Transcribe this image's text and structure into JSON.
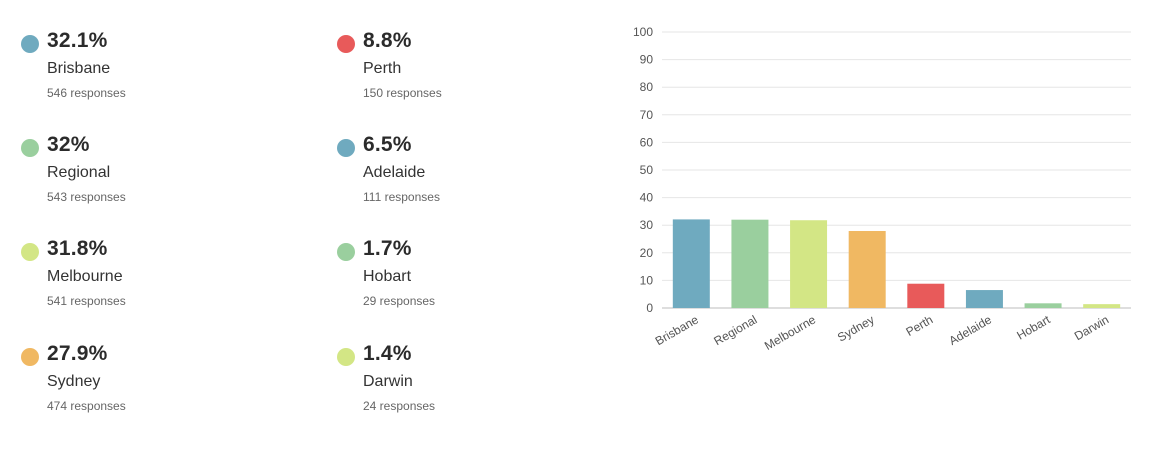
{
  "stats": [
    {
      "pct": "32.1%",
      "name": "Brisbane",
      "responses": "546 responses",
      "color": "#6faabf"
    },
    {
      "pct": "32%",
      "name": "Regional",
      "responses": "543 responses",
      "color": "#9acf9e"
    },
    {
      "pct": "31.8%",
      "name": "Melbourne",
      "responses": "541 responses",
      "color": "#d3e685"
    },
    {
      "pct": "27.9%",
      "name": "Sydney",
      "responses": "474 responses",
      "color": "#f0b862"
    },
    {
      "pct": "8.8%",
      "name": "Perth",
      "responses": "150 responses",
      "color": "#e85a5a"
    },
    {
      "pct": "6.5%",
      "name": "Adelaide",
      "responses": "111 responses",
      "color": "#6faabf"
    },
    {
      "pct": "1.7%",
      "name": "Hobart",
      "responses": "29 responses",
      "color": "#9acf9e"
    },
    {
      "pct": "1.4%",
      "name": "Darwin",
      "responses": "24 responses",
      "color": "#d3e685"
    }
  ],
  "chart_data": {
    "type": "bar",
    "categories": [
      "Brisbane",
      "Regional",
      "Melbourne",
      "Sydney",
      "Perth",
      "Adelaide",
      "Hobart",
      "Darwin"
    ],
    "values": [
      32.1,
      32,
      31.8,
      27.9,
      8.8,
      6.5,
      1.7,
      1.4
    ],
    "colors": [
      "#6faabf",
      "#9acf9e",
      "#d3e685",
      "#f0b862",
      "#e85a5a",
      "#6faabf",
      "#9acf9e",
      "#d3e685"
    ],
    "ylim": [
      0,
      100
    ],
    "yticks": [
      "0",
      "10",
      "20",
      "30",
      "40",
      "50",
      "60",
      "70",
      "80",
      "90",
      "100"
    ],
    "grid": true,
    "title": "",
    "xlabel": "",
    "ylabel": ""
  }
}
